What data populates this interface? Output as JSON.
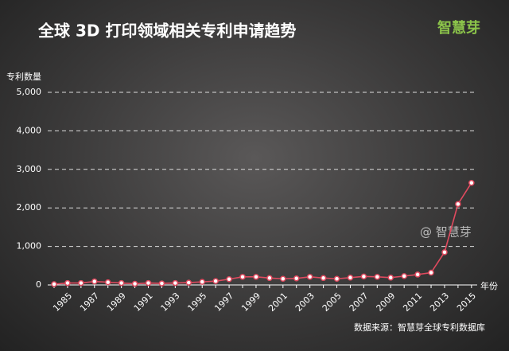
{
  "chart_data": {
    "type": "line",
    "title": "全球 3D 打印领域相关专利申请趋势",
    "brand": "智慧芽",
    "watermark": "@ 智慧芽",
    "y_label": "专利数量",
    "x_label": "年份",
    "source": "数据来源：智慧芽全球专利数据库",
    "categories": [
      null,
      "1985",
      null,
      "1987",
      null,
      "1989",
      null,
      "1991",
      null,
      "1993",
      null,
      "1995",
      null,
      "1997",
      null,
      "1999",
      null,
      "2001",
      null,
      "2003",
      null,
      "2005",
      null,
      "2007",
      null,
      "2009",
      null,
      "2011",
      null,
      "2013",
      null,
      "2015"
    ],
    "series": [
      {
        "name": "专利数量",
        "color": "#e04a5f",
        "values": [
          20,
          50,
          50,
          90,
          70,
          50,
          30,
          50,
          40,
          50,
          60,
          80,
          100,
          150,
          210,
          210,
          180,
          160,
          170,
          210,
          180,
          160,
          190,
          220,
          210,
          190,
          230,
          270,
          320,
          850,
          2100,
          2650
        ]
      }
    ],
    "ylim": [
      0,
      5000
    ],
    "yticks": [
      0,
      {
        "value": 1000,
        "label": "1,000"
      },
      {
        "value": 2000,
        "label": "2,000"
      },
      {
        "value": 3000,
        "label": "3,000"
      },
      {
        "value": 4000,
        "label": "4,000"
      },
      {
        "value": 5000,
        "label": "5,000"
      }
    ],
    "grid": true
  }
}
